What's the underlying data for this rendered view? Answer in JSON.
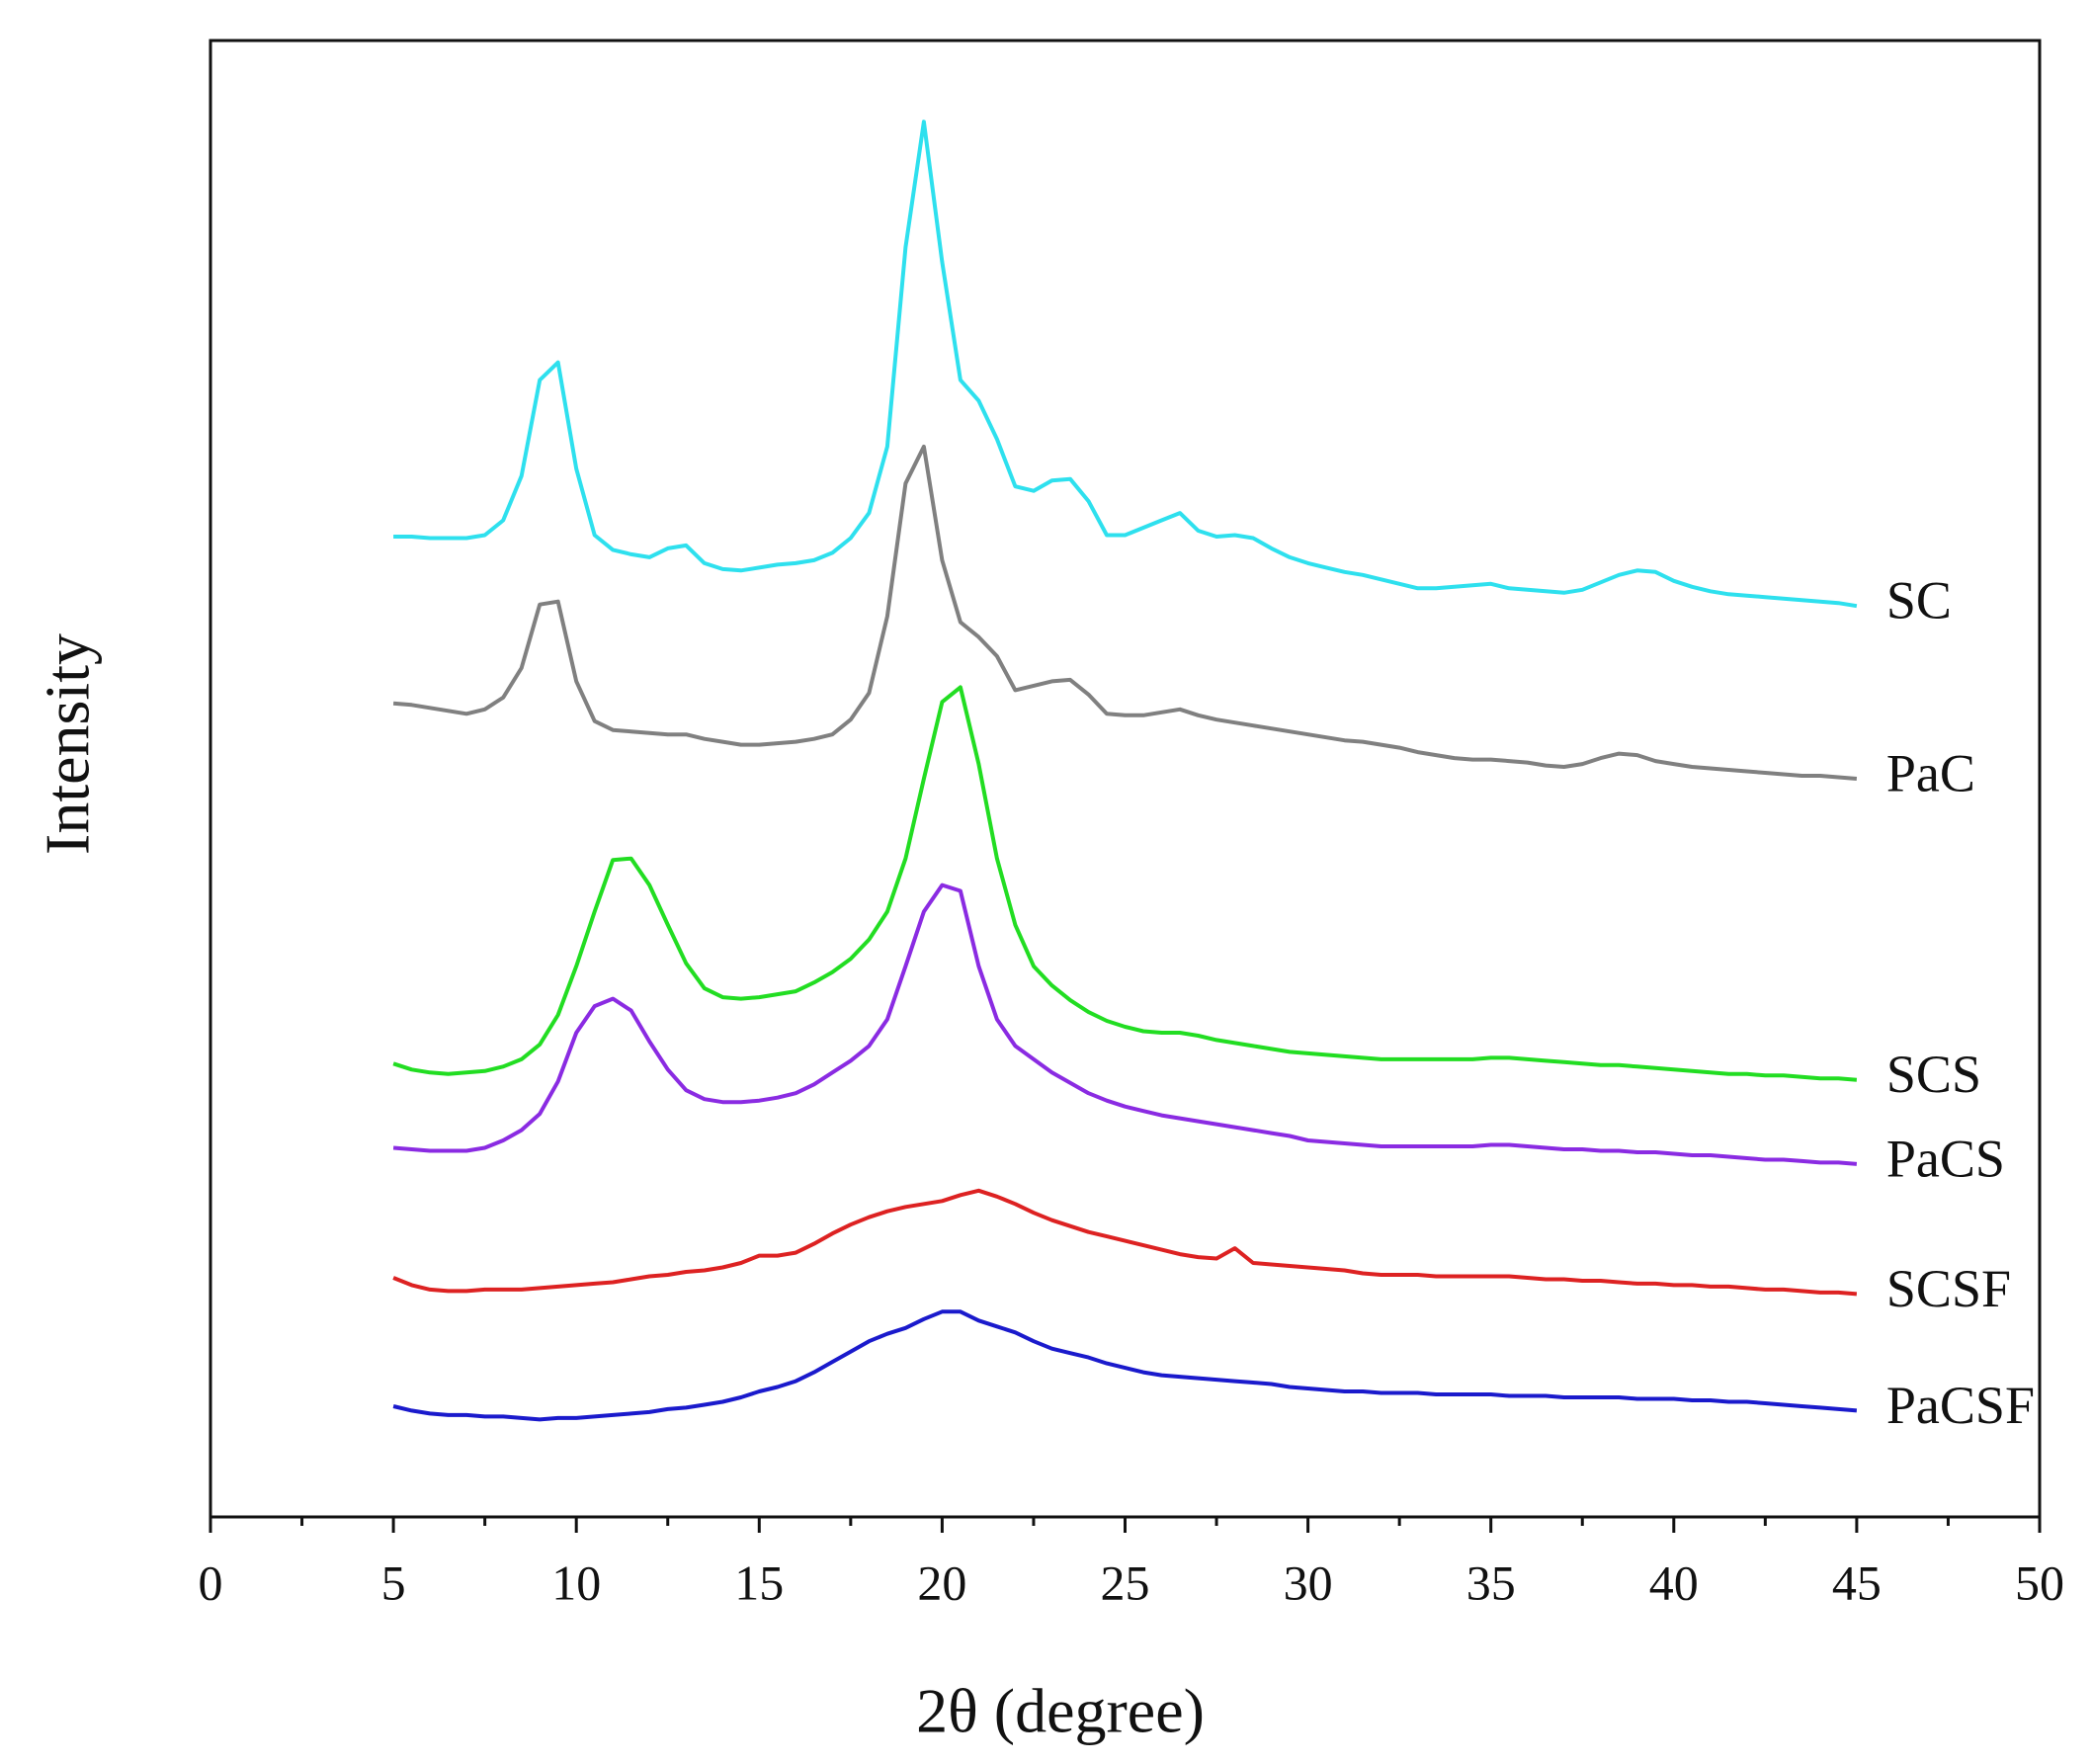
{
  "chart_data": {
    "type": "line",
    "xlabel": "2θ (degree)",
    "ylabel": "Intensity",
    "xlim": [
      0,
      50
    ],
    "xticks": [
      0,
      5,
      10,
      15,
      20,
      25,
      30,
      35,
      40,
      45,
      50
    ],
    "xminorticks": [
      2.5,
      7.5,
      12.5,
      17.5,
      22.5,
      27.5,
      32.5,
      37.5,
      42.5,
      47.5
    ],
    "ylim": [
      0,
      100
    ],
    "x": [
      5,
      5.5,
      6,
      6.5,
      7,
      7.5,
      8,
      8.5,
      9,
      9.5,
      10,
      10.5,
      11,
      11.5,
      12,
      12.5,
      13,
      13.5,
      14,
      14.5,
      15,
      15.5,
      16,
      16.5,
      17,
      17.5,
      18,
      18.5,
      19,
      19.5,
      20,
      20.5,
      21,
      21.5,
      22,
      22.5,
      23,
      23.5,
      24,
      24.5,
      25,
      25.5,
      26,
      26.5,
      27,
      27.5,
      28,
      28.5,
      29,
      29.5,
      30,
      30.5,
      31,
      31.5,
      32,
      32.5,
      33,
      33.5,
      34,
      34.5,
      35,
      35.5,
      36,
      36.5,
      37,
      37.5,
      38,
      38.5,
      39,
      39.5,
      40,
      40.5,
      41,
      41.5,
      42,
      42.5,
      43,
      43.5,
      44,
      44.5,
      45
    ],
    "series": [
      {
        "name": "SC",
        "color": "#2ee0ee",
        "values": [
          66.4,
          66.4,
          66.3,
          66.3,
          66.3,
          66.5,
          67.5,
          70.5,
          77.0,
          78.2,
          71.0,
          66.5,
          65.5,
          65.2,
          65.0,
          65.6,
          65.8,
          64.6,
          64.2,
          64.1,
          64.3,
          64.5,
          64.6,
          64.8,
          65.3,
          66.3,
          68.0,
          72.5,
          86.0,
          94.5,
          85.0,
          77.0,
          75.6,
          73.0,
          69.8,
          69.5,
          70.2,
          70.3,
          68.8,
          66.5,
          66.5,
          67.0,
          67.5,
          68.0,
          66.8,
          66.4,
          66.5,
          66.3,
          65.6,
          65.0,
          64.6,
          64.3,
          64.0,
          63.8,
          63.5,
          63.2,
          62.9,
          62.9,
          63.0,
          63.1,
          63.2,
          62.9,
          62.8,
          62.7,
          62.6,
          62.8,
          63.3,
          63.8,
          64.1,
          64.0,
          63.4,
          63.0,
          62.7,
          62.5,
          62.4,
          62.3,
          62.2,
          62.1,
          62.0,
          61.9,
          61.7
        ]
      },
      {
        "name": "PaC",
        "color": "#808080",
        "values": [
          55.1,
          55.0,
          54.8,
          54.6,
          54.4,
          54.7,
          55.5,
          57.5,
          61.8,
          62.0,
          56.6,
          53.9,
          53.3,
          53.2,
          53.1,
          53.0,
          53.0,
          52.7,
          52.5,
          52.3,
          52.3,
          52.4,
          52.5,
          52.7,
          53.0,
          54.0,
          55.8,
          61.0,
          70.0,
          72.5,
          64.8,
          60.6,
          59.6,
          58.3,
          56.0,
          56.3,
          56.6,
          56.7,
          55.7,
          54.4,
          54.3,
          54.3,
          54.5,
          54.7,
          54.3,
          54.0,
          53.8,
          53.6,
          53.4,
          53.2,
          53.0,
          52.8,
          52.6,
          52.5,
          52.3,
          52.1,
          51.8,
          51.6,
          51.4,
          51.3,
          51.3,
          51.2,
          51.1,
          50.9,
          50.8,
          51.0,
          51.4,
          51.7,
          51.6,
          51.2,
          51.0,
          50.8,
          50.7,
          50.6,
          50.5,
          50.4,
          50.3,
          50.2,
          50.2,
          50.1,
          50.0
        ]
      },
      {
        "name": "SCS",
        "color": "#22dd22",
        "values": [
          30.7,
          30.3,
          30.1,
          30.0,
          30.1,
          30.2,
          30.5,
          31.0,
          32.0,
          34.0,
          37.3,
          41.0,
          44.5,
          44.6,
          42.8,
          40.1,
          37.5,
          35.8,
          35.2,
          35.1,
          35.2,
          35.4,
          35.6,
          36.2,
          36.9,
          37.8,
          39.1,
          41.0,
          44.6,
          50.0,
          55.2,
          56.2,
          51.0,
          44.6,
          40.1,
          37.3,
          36.0,
          35.0,
          34.2,
          33.6,
          33.2,
          32.9,
          32.8,
          32.8,
          32.6,
          32.3,
          32.1,
          31.9,
          31.7,
          31.5,
          31.4,
          31.3,
          31.2,
          31.1,
          31.0,
          31.0,
          31.0,
          31.0,
          31.0,
          31.0,
          31.1,
          31.1,
          31.0,
          30.9,
          30.8,
          30.7,
          30.6,
          30.6,
          30.5,
          30.4,
          30.3,
          30.2,
          30.1,
          30.0,
          30.0,
          29.9,
          29.9,
          29.8,
          29.7,
          29.7,
          29.6
        ]
      },
      {
        "name": "PaCS",
        "color": "#8a2be2",
        "values": [
          25.0,
          24.9,
          24.8,
          24.8,
          24.8,
          25.0,
          25.5,
          26.2,
          27.3,
          29.5,
          32.8,
          34.6,
          35.1,
          34.3,
          32.2,
          30.3,
          28.9,
          28.3,
          28.1,
          28.1,
          28.2,
          28.4,
          28.7,
          29.3,
          30.1,
          30.9,
          31.9,
          33.7,
          37.3,
          41.0,
          42.8,
          42.4,
          37.3,
          33.7,
          31.9,
          31.0,
          30.1,
          29.4,
          28.7,
          28.2,
          27.8,
          27.5,
          27.2,
          27.0,
          26.8,
          26.6,
          26.4,
          26.2,
          26.0,
          25.8,
          25.5,
          25.4,
          25.3,
          25.2,
          25.1,
          25.1,
          25.1,
          25.1,
          25.1,
          25.1,
          25.2,
          25.2,
          25.1,
          25.0,
          24.9,
          24.9,
          24.8,
          24.8,
          24.7,
          24.7,
          24.6,
          24.5,
          24.5,
          24.4,
          24.3,
          24.2,
          24.2,
          24.1,
          24.0,
          24.0,
          23.9
        ]
      },
      {
        "name": "SCSF",
        "color": "#dd2222",
        "values": [
          16.2,
          15.7,
          15.4,
          15.3,
          15.3,
          15.4,
          15.4,
          15.4,
          15.5,
          15.6,
          15.7,
          15.8,
          15.9,
          16.1,
          16.3,
          16.4,
          16.6,
          16.7,
          16.9,
          17.2,
          17.7,
          17.7,
          17.9,
          18.5,
          19.2,
          19.8,
          20.3,
          20.7,
          21.0,
          21.2,
          21.4,
          21.8,
          22.1,
          21.7,
          21.2,
          20.6,
          20.1,
          19.7,
          19.3,
          19.0,
          18.7,
          18.4,
          18.1,
          17.8,
          17.6,
          17.5,
          18.2,
          17.2,
          17.1,
          17.0,
          16.9,
          16.8,
          16.7,
          16.5,
          16.4,
          16.4,
          16.4,
          16.3,
          16.3,
          16.3,
          16.3,
          16.3,
          16.2,
          16.1,
          16.1,
          16.0,
          16.0,
          15.9,
          15.8,
          15.8,
          15.7,
          15.7,
          15.6,
          15.6,
          15.5,
          15.4,
          15.4,
          15.3,
          15.2,
          15.2,
          15.1
        ]
      },
      {
        "name": "PaCSF",
        "color": "#1a1acc",
        "values": [
          7.5,
          7.2,
          7.0,
          6.9,
          6.9,
          6.8,
          6.8,
          6.7,
          6.6,
          6.7,
          6.7,
          6.8,
          6.9,
          7.0,
          7.1,
          7.3,
          7.4,
          7.6,
          7.8,
          8.1,
          8.5,
          8.8,
          9.2,
          9.8,
          10.5,
          11.2,
          11.9,
          12.4,
          12.8,
          13.4,
          13.9,
          13.9,
          13.3,
          12.9,
          12.5,
          11.9,
          11.4,
          11.1,
          10.8,
          10.4,
          10.1,
          9.8,
          9.6,
          9.5,
          9.4,
          9.3,
          9.2,
          9.1,
          9.0,
          8.8,
          8.7,
          8.6,
          8.5,
          8.5,
          8.4,
          8.4,
          8.4,
          8.3,
          8.3,
          8.3,
          8.3,
          8.2,
          8.2,
          8.2,
          8.1,
          8.1,
          8.1,
          8.1,
          8.0,
          8.0,
          8.0,
          7.9,
          7.9,
          7.8,
          7.8,
          7.7,
          7.6,
          7.5,
          7.4,
          7.3,
          7.2
        ]
      }
    ]
  }
}
